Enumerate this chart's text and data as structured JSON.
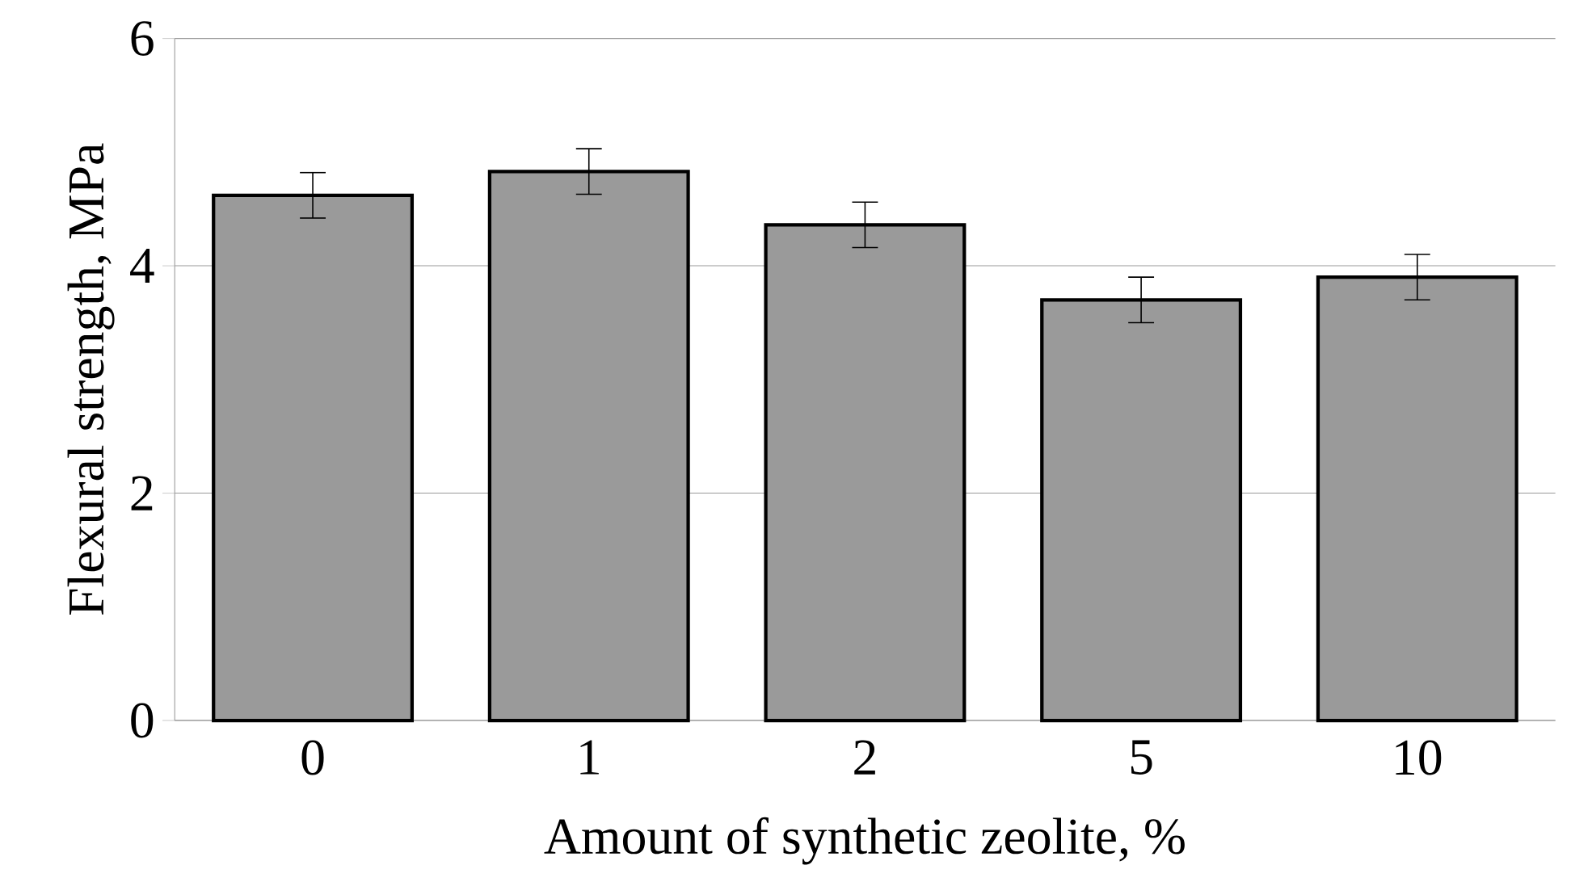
{
  "chart_data": {
    "type": "bar",
    "xlabel": "Amount of synthetic zeolite, %",
    "ylabel": "Flexural  strength, MPa",
    "categories": [
      "0",
      "1",
      "2",
      "5",
      "10"
    ],
    "values": [
      4.62,
      4.83,
      4.36,
      3.7,
      3.9
    ],
    "errors": [
      0.2,
      0.2,
      0.2,
      0.2,
      0.2
    ],
    "color": "#9a9a9a",
    "ylim": [
      0,
      6
    ],
    "yticks": [
      0,
      2,
      4,
      6
    ],
    "grid": "y"
  }
}
